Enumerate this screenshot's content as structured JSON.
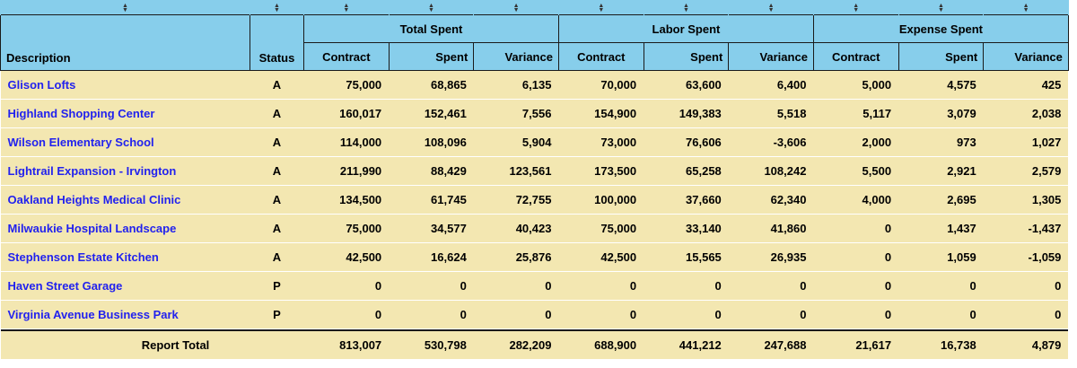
{
  "groups": {
    "total": "Total Spent",
    "labor": "Labor Spent",
    "expense": "Expense Spent"
  },
  "headers": {
    "description": "Description",
    "status": "Status",
    "contract": "Contract",
    "spent": "Spent",
    "variance": "Variance"
  },
  "sort_icon": "sort-arrows-icon",
  "rows": [
    {
      "description": "Glison Lofts",
      "status": "A",
      "values": [
        "75,000",
        "68,865",
        "6,135",
        "70,000",
        "63,600",
        "6,400",
        "5,000",
        "4,575",
        "425"
      ]
    },
    {
      "description": "Highland Shopping Center",
      "status": "A",
      "values": [
        "160,017",
        "152,461",
        "7,556",
        "154,900",
        "149,383",
        "5,518",
        "5,117",
        "3,079",
        "2,038"
      ]
    },
    {
      "description": "Wilson Elementary School",
      "status": "A",
      "values": [
        "114,000",
        "108,096",
        "5,904",
        "73,000",
        "76,606",
        "-3,606",
        "2,000",
        "973",
        "1,027"
      ]
    },
    {
      "description": "Lightrail Expansion - Irvington",
      "status": "A",
      "values": [
        "211,990",
        "88,429",
        "123,561",
        "173,500",
        "65,258",
        "108,242",
        "5,500",
        "2,921",
        "2,579"
      ]
    },
    {
      "description": "Oakland Heights Medical Clinic",
      "status": "A",
      "values": [
        "134,500",
        "61,745",
        "72,755",
        "100,000",
        "37,660",
        "62,340",
        "4,000",
        "2,695",
        "1,305"
      ]
    },
    {
      "description": "Milwaukie Hospital Landscape",
      "status": "A",
      "values": [
        "75,000",
        "34,577",
        "40,423",
        "75,000",
        "33,140",
        "41,860",
        "0",
        "1,437",
        "-1,437"
      ]
    },
    {
      "description": "Stephenson Estate Kitchen",
      "status": "A",
      "values": [
        "42,500",
        "16,624",
        "25,876",
        "42,500",
        "15,565",
        "26,935",
        "0",
        "1,059",
        "-1,059"
      ]
    },
    {
      "description": "Haven Street Garage",
      "status": "P",
      "values": [
        "0",
        "0",
        "0",
        "0",
        "0",
        "0",
        "0",
        "0",
        "0"
      ]
    },
    {
      "description": "Virginia Avenue Business Park",
      "status": "P",
      "values": [
        "0",
        "0",
        "0",
        "0",
        "0",
        "0",
        "0",
        "0",
        "0"
      ]
    }
  ],
  "total": {
    "label": "Report Total",
    "values": [
      "813,007",
      "530,798",
      "282,209",
      "688,900",
      "441,212",
      "247,688",
      "21,617",
      "16,738",
      "4,879"
    ]
  }
}
